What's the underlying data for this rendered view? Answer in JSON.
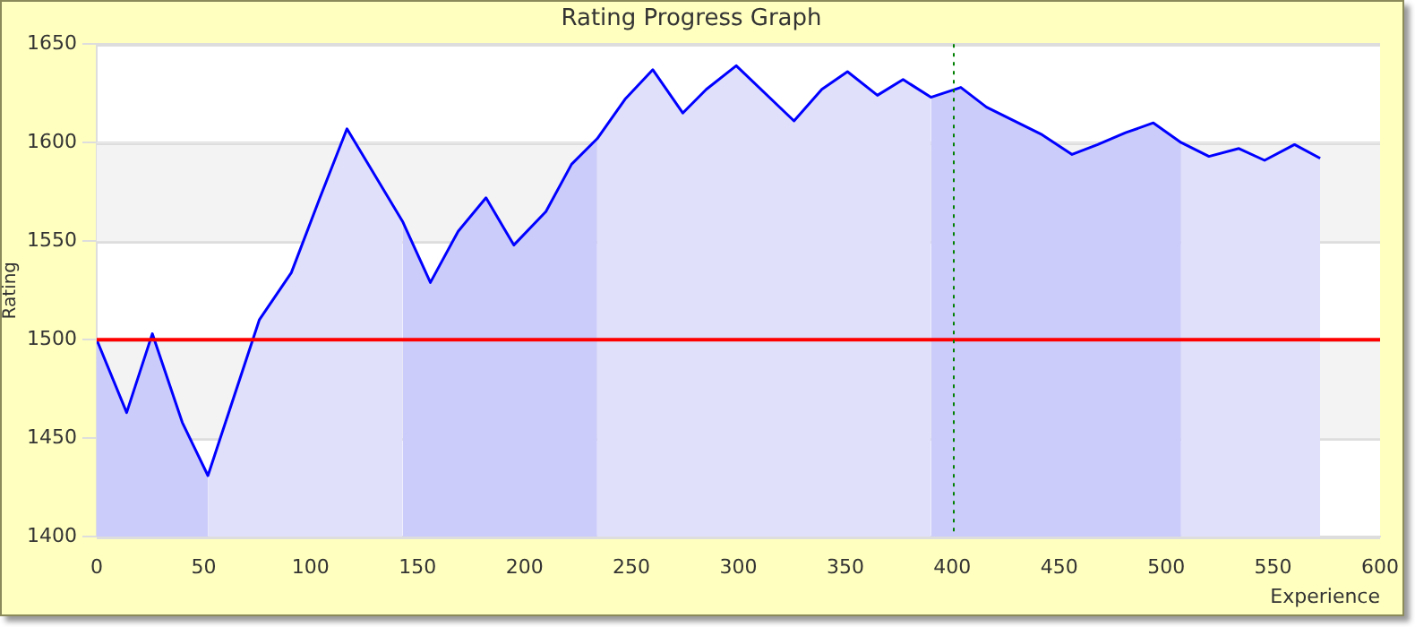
{
  "chart_data": {
    "type": "area",
    "title": "Rating Progress Graph",
    "xlabel": "Experience",
    "ylabel": "Rating",
    "xlim": [
      0,
      600
    ],
    "xticks": [
      0,
      50,
      100,
      150,
      200,
      250,
      300,
      350,
      400,
      450,
      500,
      550,
      600
    ],
    "ylim": [
      1400,
      1650
    ],
    "yticks": [
      1400,
      1450,
      1500,
      1550,
      1600,
      1650
    ],
    "grid": "y",
    "legend": false,
    "marker": "none",
    "series": [
      {
        "type": "area",
        "color": "#ccccfa",
        "x": [
          0,
          14,
          26,
          40,
          52
        ],
        "values": [
          1500,
          1463,
          1503,
          1458,
          1431
        ]
      },
      {
        "type": "area",
        "color": "#e0e0fa",
        "x": [
          52,
          76,
          91,
          104,
          117,
          143
        ],
        "values": [
          1431,
          1510,
          1534,
          1571,
          1607,
          1560
        ]
      },
      {
        "type": "area",
        "color": "#ccccfa",
        "x": [
          143,
          156,
          169,
          182,
          195,
          210,
          222,
          234
        ],
        "values": [
          1560,
          1529,
          1555,
          1572,
          1548,
          1565,
          1589,
          1602
        ]
      },
      {
        "type": "area",
        "color": "#e0e0fa",
        "x": [
          234,
          247,
          260,
          274,
          285,
          299,
          326,
          339,
          351,
          365,
          377,
          390
        ],
        "values": [
          1602,
          1622,
          1637,
          1615,
          1627,
          1639,
          1611,
          1627,
          1636,
          1624,
          1632,
          1623
        ]
      },
      {
        "type": "area",
        "color": "#ccccfa",
        "x": [
          390,
          404,
          416,
          442,
          456,
          468,
          481,
          494,
          507
        ],
        "values": [
          1623,
          1628,
          1618,
          1604,
          1594,
          1599,
          1605,
          1610,
          1600
        ]
      },
      {
        "type": "area",
        "color": "#e0e0fa",
        "x": [
          507,
          520,
          534,
          546,
          560,
          572
        ],
        "values": [
          1600,
          1593,
          1597,
          1591,
          1599,
          1592
        ]
      },
      {
        "type": "line",
        "color": "#0000ff",
        "x": [
          0,
          14,
          26,
          40,
          52,
          76,
          91,
          104,
          117,
          143,
          156,
          169,
          182,
          195,
          210,
          222,
          234,
          247,
          260,
          274,
          285,
          299,
          326,
          339,
          351,
          365,
          377,
          390,
          404,
          416,
          442,
          456,
          468,
          481,
          494,
          507,
          520,
          534,
          546,
          560,
          572
        ],
        "values": [
          1500,
          1463,
          1503,
          1458,
          1431,
          1510,
          1534,
          1571,
          1607,
          1560,
          1529,
          1555,
          1572,
          1548,
          1565,
          1589,
          1602,
          1622,
          1637,
          1615,
          1627,
          1639,
          1611,
          1627,
          1636,
          1624,
          1632,
          1623,
          1628,
          1618,
          1604,
          1594,
          1599,
          1605,
          1610,
          1600,
          1593,
          1597,
          1591,
          1599,
          1592
        ]
      }
    ],
    "bands": [
      {
        "axis": "y",
        "from": 1450,
        "to": 1500,
        "color": "#f3f3f3"
      },
      {
        "axis": "y",
        "from": 1550,
        "to": 1600,
        "color": "#f3f3f3"
      }
    ],
    "ref_lines": [
      {
        "axis": "y",
        "value": 1500,
        "color": "#ff0000",
        "line_style": "solid"
      },
      {
        "axis": "x",
        "value": 400,
        "color": "#008000",
        "line_style": "dotted"
      }
    ]
  }
}
